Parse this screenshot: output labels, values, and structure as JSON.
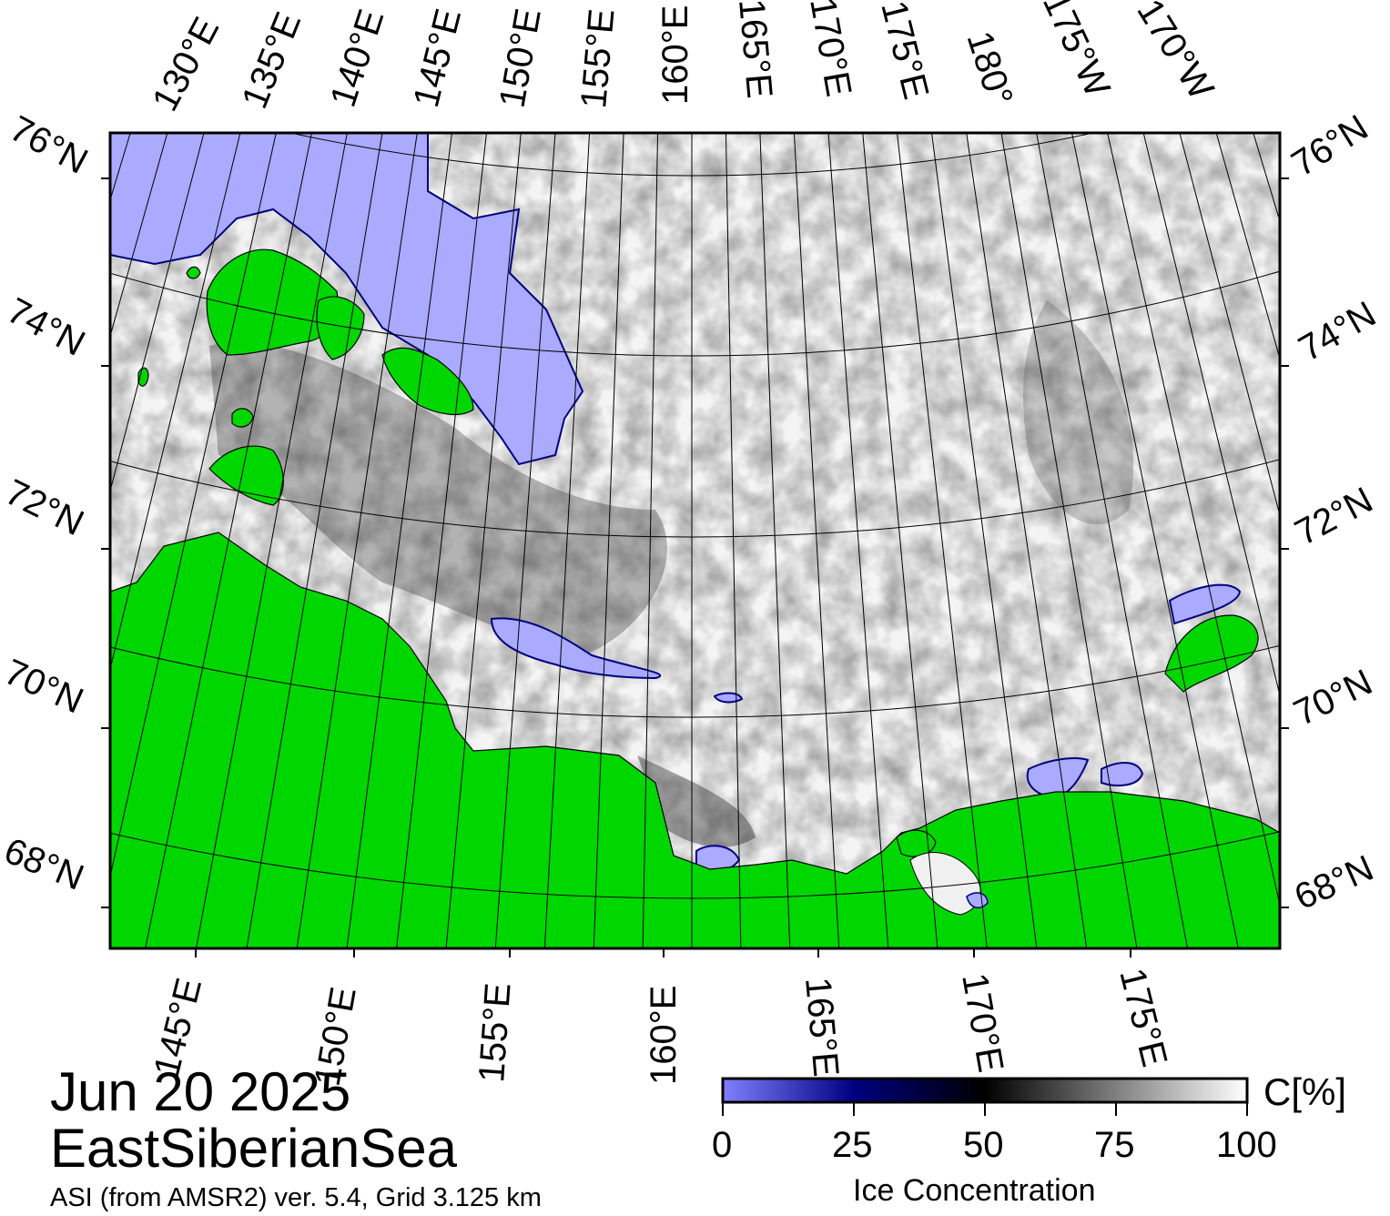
{
  "map": {
    "date": "Jun 20 2025",
    "region": "EastSiberianSea",
    "source": "ASI (from AMSR2) ver. 5.4,  Grid 3.125 km",
    "colors": {
      "land": "#00d600",
      "open_water": "#aaaaff",
      "frame": "#000000",
      "graticule": "#000000"
    },
    "top_lon_labels": [
      "130°E",
      "135°E",
      "140°E",
      "145°E",
      "150°E",
      "155°E",
      "160°E",
      "165°E",
      "170°E",
      "175°E",
      "180°",
      "175°W",
      "170°W"
    ],
    "bottom_lon_labels": [
      "145°E",
      "150°E",
      "155°E",
      "160°E",
      "165°E",
      "170°E",
      "175°E"
    ],
    "left_lat_labels": [
      "76°N",
      "74°N",
      "72°N",
      "70°N",
      "68°N"
    ],
    "right_lat_labels": [
      "76°N",
      "74°N",
      "72°N",
      "70°N",
      "68°N"
    ]
  },
  "colorbar": {
    "title": "Ice Concentration",
    "unit": "C[%]",
    "ticks": [
      "0",
      "25",
      "50",
      "75",
      "100"
    ],
    "gradient_stops": [
      {
        "value": 0,
        "color": "#8080ff"
      },
      {
        "value": 25,
        "color": "#000080"
      },
      {
        "value": 50,
        "color": "#000000"
      },
      {
        "value": 100,
        "color": "#ffffff"
      }
    ]
  }
}
